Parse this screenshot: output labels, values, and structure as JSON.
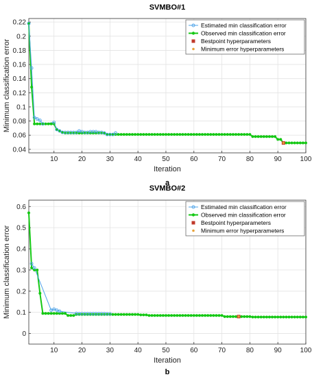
{
  "chart_data": [
    {
      "type": "line",
      "title": "SVMBO#1",
      "sublabel": "a",
      "xlabel": "Iteration",
      "ylabel": "Minimum classification error",
      "xlim": [
        1,
        100
      ],
      "ylim": [
        0.035,
        0.225
      ],
      "xticks": [
        10,
        20,
        30,
        40,
        50,
        60,
        70,
        80,
        90,
        100
      ],
      "yticks": [
        0.04,
        0.06,
        0.08,
        0.1,
        0.12,
        0.14,
        0.16,
        0.18,
        0.2,
        0.22
      ],
      "ytick_labels": [
        "0.04",
        "0.06",
        "0.08",
        "0.1",
        "0.12",
        "0.14",
        "0.16",
        "0.18",
        "0.2",
        "0.22"
      ],
      "grid": true,
      "legend_position": "top-right",
      "legend": [
        "Estimated min classification error",
        "Observed min classification error",
        "Bestpoint hyperparameters",
        "Minimum error hyperparameters"
      ],
      "series": [
        {
          "name": "Estimated min classification error",
          "color": "#4da3e8",
          "x": [
            1,
            2,
            3,
            4,
            5,
            6,
            10,
            11,
            12,
            13,
            14,
            15,
            16,
            17,
            18,
            19,
            20,
            21,
            22,
            23,
            24,
            25,
            26,
            27,
            28,
            29,
            30,
            31,
            32
          ],
          "values": [
            0.218,
            0.155,
            0.085,
            0.083,
            0.081,
            0.076,
            0.078,
            0.068,
            0.066,
            0.064,
            0.064,
            0.064,
            0.064,
            0.064,
            0.064,
            0.066,
            0.065,
            0.064,
            0.064,
            0.065,
            0.065,
            0.065,
            0.064,
            0.064,
            0.063,
            0.061,
            0.061,
            0.061,
            0.063
          ]
        },
        {
          "name": "Observed min classification error",
          "color": "#14c814",
          "x": [
            1,
            2,
            3,
            4,
            5,
            6,
            7,
            8,
            9,
            10,
            11,
            12,
            13,
            14,
            15,
            16,
            17,
            18,
            19,
            20,
            21,
            22,
            23,
            24,
            25,
            26,
            27,
            28,
            29,
            30,
            31,
            32,
            33,
            34,
            35,
            36,
            37,
            38,
            39,
            40,
            41,
            42,
            43,
            44,
            45,
            46,
            47,
            48,
            49,
            50,
            51,
            52,
            53,
            54,
            55,
            56,
            57,
            58,
            59,
            60,
            61,
            62,
            63,
            64,
            65,
            66,
            67,
            68,
            69,
            70,
            71,
            72,
            73,
            74,
            75,
            76,
            77,
            78,
            79,
            80,
            81,
            82,
            83,
            84,
            85,
            86,
            87,
            88,
            89,
            90,
            91,
            92,
            93,
            94,
            95,
            96,
            97,
            98,
            99,
            100
          ],
          "values": [
            0.218,
            0.128,
            0.076,
            0.076,
            0.076,
            0.076,
            0.076,
            0.076,
            0.076,
            0.076,
            0.068,
            0.066,
            0.064,
            0.063,
            0.063,
            0.063,
            0.063,
            0.063,
            0.063,
            0.063,
            0.063,
            0.063,
            0.063,
            0.063,
            0.063,
            0.063,
            0.063,
            0.063,
            0.061,
            0.061,
            0.061,
            0.061,
            0.061,
            0.061,
            0.061,
            0.061,
            0.061,
            0.061,
            0.061,
            0.061,
            0.061,
            0.061,
            0.061,
            0.061,
            0.061,
            0.061,
            0.061,
            0.061,
            0.061,
            0.061,
            0.061,
            0.061,
            0.061,
            0.061,
            0.061,
            0.061,
            0.061,
            0.061,
            0.061,
            0.061,
            0.061,
            0.061,
            0.061,
            0.061,
            0.061,
            0.061,
            0.061,
            0.061,
            0.061,
            0.061,
            0.061,
            0.061,
            0.061,
            0.061,
            0.061,
            0.061,
            0.061,
            0.061,
            0.061,
            0.061,
            0.058,
            0.058,
            0.058,
            0.058,
            0.058,
            0.058,
            0.058,
            0.058,
            0.058,
            0.054,
            0.054,
            0.049,
            0.049,
            0.049,
            0.049,
            0.049,
            0.049,
            0.049,
            0.049,
            0.049
          ]
        }
      ],
      "bestpoint": {
        "x": 92,
        "y": 0.049,
        "color": "#c0392b"
      },
      "min_error_point": {
        "x": 92,
        "y": 0.049,
        "color": "#e8a33a"
      }
    },
    {
      "type": "line",
      "title": "SVMBO#2",
      "sublabel": "b",
      "xlabel": "Iteration",
      "ylabel": "Minimum classification error",
      "xlim": [
        1,
        100
      ],
      "ylim": [
        -0.05,
        0.63
      ],
      "xticks": [
        10,
        20,
        30,
        40,
        50,
        60,
        70,
        80,
        90,
        100
      ],
      "yticks": [
        0,
        0.1,
        0.2,
        0.3,
        0.4,
        0.5,
        0.6
      ],
      "ytick_labels": [
        "0",
        "0.1",
        "0.2",
        "0.3",
        "0.4",
        "0.5",
        "0.6"
      ],
      "grid": true,
      "legend_position": "top-right",
      "legend": [
        "Estimated min classification error",
        "Observed min classification error",
        "Bestpoint hyperparameters",
        "Minimum error hyperparameters"
      ],
      "series": [
        {
          "name": "Estimated min classification error",
          "color": "#4da3e8",
          "x": [
            2,
            3,
            9,
            10,
            11,
            12,
            18,
            19,
            20,
            21,
            22,
            23,
            24,
            25,
            26,
            27,
            28,
            29,
            30
          ],
          "values": [
            0.33,
            0.31,
            0.11,
            0.115,
            0.11,
            0.105,
            0.095,
            0.094,
            0.094,
            0.094,
            0.094,
            0.094,
            0.094,
            0.094,
            0.094,
            0.094,
            0.094,
            0.093,
            0.093
          ]
        },
        {
          "name": "Observed min classification error",
          "color": "#14c814",
          "x": [
            1,
            2,
            3,
            4,
            5,
            6,
            7,
            8,
            9,
            10,
            11,
            12,
            13,
            14,
            15,
            16,
            17,
            18,
            19,
            20,
            21,
            22,
            23,
            24,
            25,
            26,
            27,
            28,
            29,
            30,
            31,
            32,
            33,
            34,
            35,
            36,
            37,
            38,
            39,
            40,
            41,
            42,
            43,
            44,
            45,
            46,
            47,
            48,
            49,
            50,
            51,
            52,
            53,
            54,
            55,
            56,
            57,
            58,
            59,
            60,
            61,
            62,
            63,
            64,
            65,
            66,
            67,
            68,
            69,
            70,
            71,
            72,
            73,
            74,
            75,
            76,
            77,
            78,
            79,
            80,
            81,
            82,
            83,
            84,
            85,
            86,
            87,
            88,
            89,
            90,
            91,
            92,
            93,
            94,
            95,
            96,
            97,
            98,
            99,
            100
          ],
          "values": [
            0.57,
            0.31,
            0.3,
            0.3,
            0.19,
            0.095,
            0.095,
            0.095,
            0.095,
            0.095,
            0.095,
            0.095,
            0.095,
            0.095,
            0.085,
            0.085,
            0.085,
            0.09,
            0.09,
            0.09,
            0.09,
            0.09,
            0.09,
            0.09,
            0.09,
            0.09,
            0.09,
            0.09,
            0.09,
            0.09,
            0.09,
            0.09,
            0.09,
            0.09,
            0.09,
            0.09,
            0.09,
            0.09,
            0.09,
            0.09,
            0.088,
            0.088,
            0.088,
            0.085,
            0.085,
            0.085,
            0.085,
            0.085,
            0.085,
            0.085,
            0.085,
            0.085,
            0.085,
            0.085,
            0.085,
            0.085,
            0.085,
            0.085,
            0.085,
            0.085,
            0.085,
            0.085,
            0.085,
            0.085,
            0.085,
            0.085,
            0.085,
            0.085,
            0.085,
            0.085,
            0.08,
            0.08,
            0.08,
            0.08,
            0.08,
            0.08,
            0.08,
            0.08,
            0.08,
            0.08,
            0.078,
            0.078,
            0.078,
            0.078,
            0.078,
            0.078,
            0.078,
            0.078,
            0.078,
            0.078,
            0.078,
            0.078,
            0.078,
            0.078,
            0.078,
            0.078,
            0.078,
            0.078,
            0.078,
            0.078
          ]
        }
      ],
      "bestpoint": {
        "x": 76,
        "y": 0.08,
        "color": "#c0392b"
      },
      "min_error_point": {
        "x": 76,
        "y": 0.08,
        "color": "#e8a33a"
      }
    }
  ]
}
